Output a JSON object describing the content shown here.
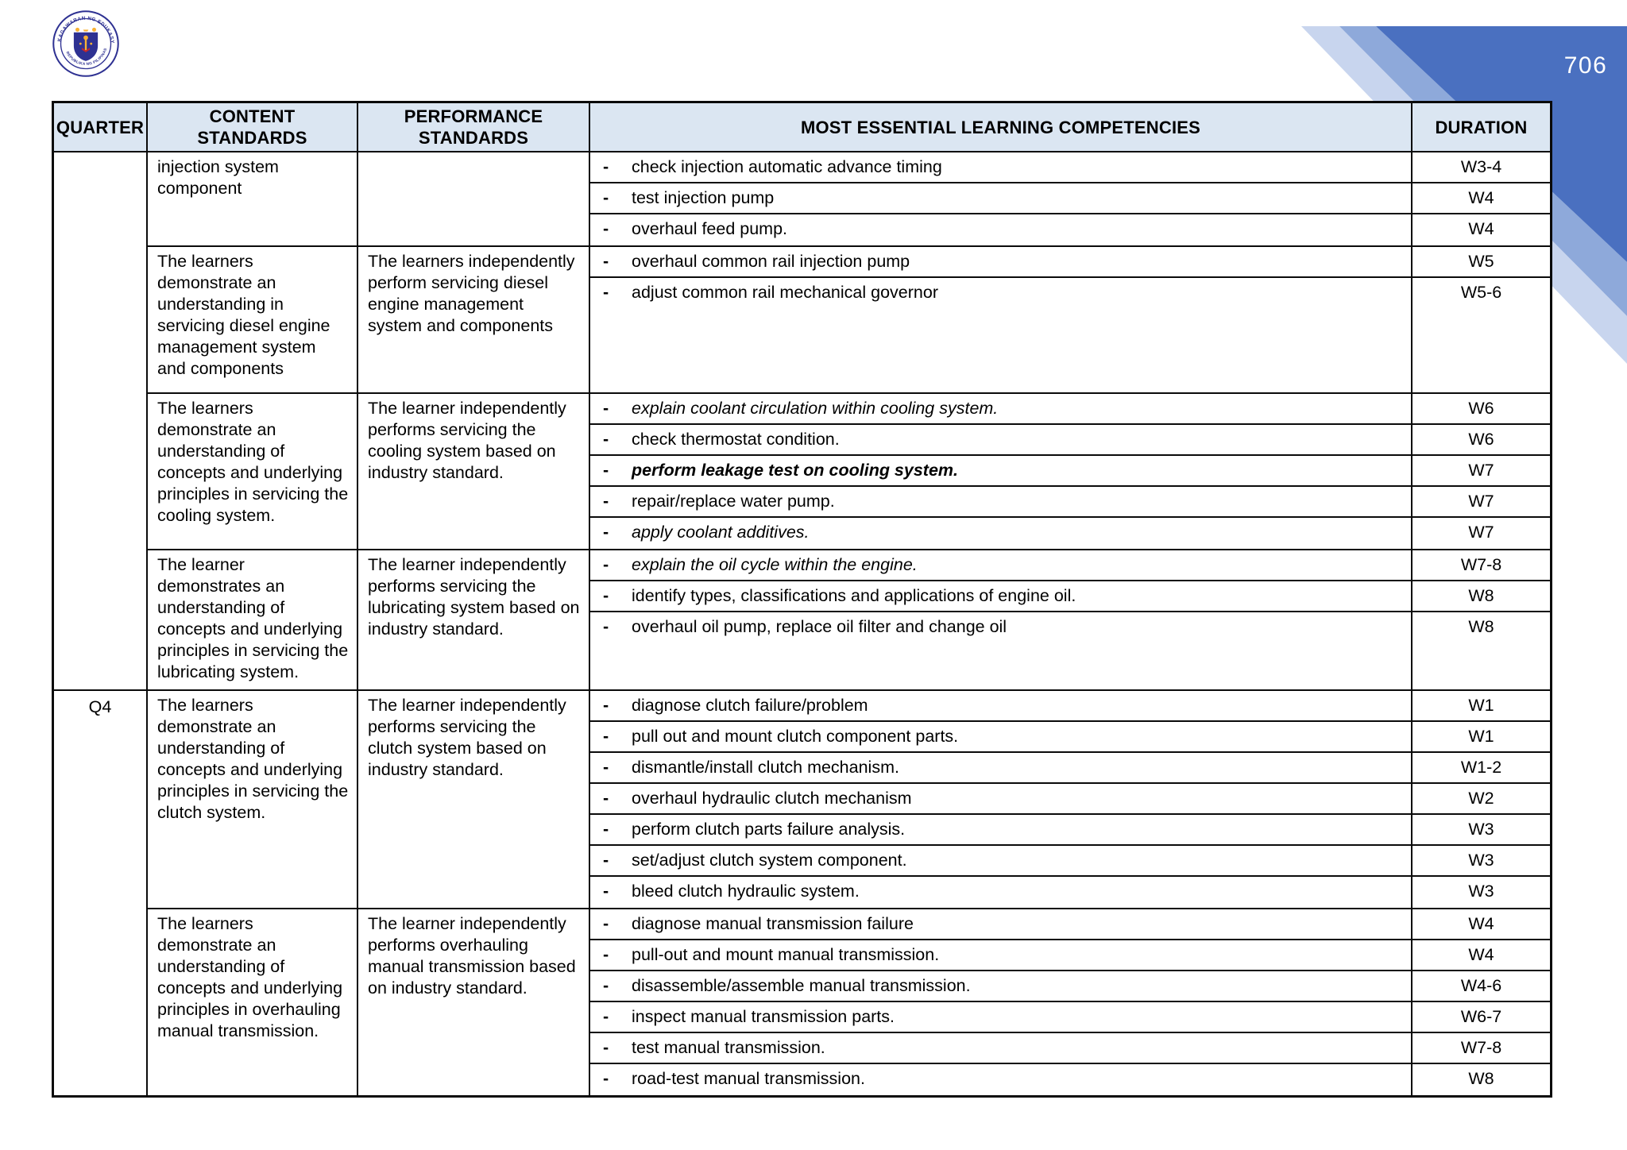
{
  "page": {
    "number": "706",
    "logo": {
      "top_text": "KAGAWARAN NG EDUKASYON",
      "bottom_text": "REPUBLIKA NG PILIPINAS"
    },
    "corner_colors": {
      "main": "#4a70c0",
      "mid": "#8ea9da",
      "light": "#c8d5ee"
    }
  },
  "table": {
    "header_bg": "#dbe6f2",
    "bullet_char": "-",
    "headers": [
      "QUARTER",
      "CONTENT STANDARDS",
      "PERFORMANCE STANDARDS",
      "MOST ESSENTIAL LEARNING COMPETENCIES",
      "DURATION"
    ],
    "quarters": [
      {
        "label": "",
        "groups": [
          {
            "content_standard": "injection system component",
            "performance_standard": "",
            "competencies": [
              {
                "text": "check injection automatic advance timing",
                "style": "normal",
                "duration": "W3-4"
              },
              {
                "text": "test injection pump",
                "style": "normal",
                "duration": "W4"
              },
              {
                "text": "overhaul feed pump.",
                "style": "normal",
                "duration": "W4"
              }
            ]
          },
          {
            "content_standard": "The learners demonstrate an understanding in servicing diesel engine management system and components",
            "performance_standard": "The learners independently perform servicing diesel engine management system and components",
            "competencies": [
              {
                "text": "overhaul common rail injection pump",
                "style": "normal",
                "duration": "W5"
              },
              {
                "text": "adjust common rail mechanical governor",
                "style": "normal",
                "duration": "W5-6"
              }
            ]
          },
          {
            "content_standard": "The learners demonstrate an understanding of concepts and underlying principles in servicing the cooling system.",
            "performance_standard": "The learner independently performs servicing the cooling system based on industry standard.",
            "competencies": [
              {
                "text": "explain coolant circulation within cooling system.",
                "style": "italic",
                "duration": "W6"
              },
              {
                "text": "check thermostat condition.",
                "style": "normal",
                "duration": "W6"
              },
              {
                "text": "perform leakage test on cooling system.",
                "style": "bold-italic",
                "duration": "W7"
              },
              {
                "text": "repair/replace water pump.",
                "style": "normal",
                "duration": "W7"
              },
              {
                "text": "apply coolant additives.",
                "style": "italic",
                "duration": "W7"
              }
            ]
          },
          {
            "content_standard": "The learner demonstrates an understanding of concepts and underlying principles in servicing the lubricating system.",
            "performance_standard": "The learner independently performs servicing the lubricating system based on industry standard.",
            "competencies": [
              {
                "text": "explain the oil cycle within the engine.",
                "style": "italic",
                "duration": "W7-8"
              },
              {
                "text": "identify types, classifications and applications of engine oil.",
                "style": "normal",
                "duration": "W8"
              },
              {
                "text": "overhaul oil pump, replace oil filter and change oil",
                "style": "normal",
                "duration": "W8"
              }
            ]
          }
        ]
      },
      {
        "label": "Q4",
        "groups": [
          {
            "content_standard": "The learners demonstrate an understanding of concepts and underlying principles in servicing the clutch system.",
            "performance_standard": "The learner independently performs servicing the clutch system based on industry standard.",
            "competencies": [
              {
                "text": "diagnose clutch failure/problem",
                "style": "normal",
                "duration": "W1"
              },
              {
                "text": "pull out and mount clutch component parts.",
                "style": "normal",
                "duration": "W1"
              },
              {
                "text": "dismantle/install clutch mechanism.",
                "style": "normal",
                "duration": "W1-2"
              },
              {
                "text": "overhaul hydraulic clutch mechanism",
                "style": "normal",
                "duration": "W2"
              },
              {
                "text": "perform clutch parts failure analysis.",
                "style": "normal",
                "duration": "W3"
              },
              {
                "text": "set/adjust clutch system component.",
                "style": "normal",
                "duration": "W3"
              },
              {
                "text": "bleed clutch hydraulic system.",
                "style": "normal",
                "duration": "W3"
              }
            ]
          },
          {
            "content_standard": "The learners demonstrate an understanding of concepts and underlying principles in overhauling manual transmission.",
            "performance_standard": "The learner independently performs overhauling manual transmission based on industry standard.",
            "competencies": [
              {
                "text": "diagnose manual transmission failure",
                "style": "normal",
                "duration": "W4"
              },
              {
                "text": "pull-out and mount manual transmission.",
                "style": "normal",
                "duration": "W4"
              },
              {
                "text": "disassemble/assemble manual transmission.",
                "style": "normal",
                "duration": "W4-6"
              },
              {
                "text": "inspect manual transmission parts.",
                "style": "normal",
                "duration": "W6-7"
              },
              {
                "text": "test manual transmission.",
                "style": "normal",
                "duration": "W7-8"
              },
              {
                "text": "road-test manual transmission.",
                "style": "normal",
                "duration": "W8"
              }
            ]
          }
        ]
      }
    ]
  }
}
